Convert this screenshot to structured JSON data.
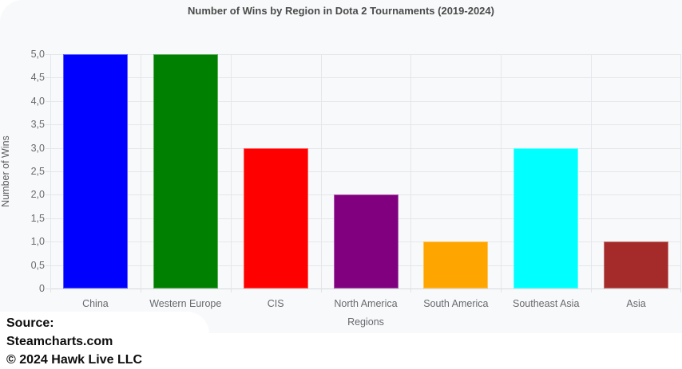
{
  "page": {
    "title": "Number of Wins by Region in Dota 2 Tournaments (2019-2024)",
    "source_label": "Source:",
    "source_name": "Steamcharts.com",
    "copyright": "© 2024 Hawk Live LLC"
  },
  "chart_data": {
    "type": "bar",
    "title": "Number of Wins by Region in Dota 2 Tournaments (2019-2024)",
    "categories": [
      "China",
      "Western Europe",
      "CIS",
      "North America",
      "South America",
      "Southeast Asia",
      "Asia"
    ],
    "values": [
      5,
      5,
      3,
      2,
      1,
      3,
      1
    ],
    "bar_colors": [
      "#0000ff",
      "#008000",
      "#ff0000",
      "#800080",
      "#ffa500",
      "#00ffff",
      "#a52a2a"
    ],
    "xlabel": "Regions",
    "ylabel": "Number of Wins",
    "ylim": [
      0,
      5
    ],
    "ytick_step": 0.5,
    "ytick_labels": [
      "0",
      "0,5",
      "1,0",
      "1,5",
      "2,0",
      "2,5",
      "3,0",
      "3,5",
      "4,0",
      "4,5",
      "5,0"
    ],
    "grid": true,
    "legend_position": "none",
    "plot_bg": "#f8f9fa",
    "grid_color": "#e4e7ea",
    "axis_text_color": "#666a6e",
    "title_color": "#4b4b4b"
  }
}
